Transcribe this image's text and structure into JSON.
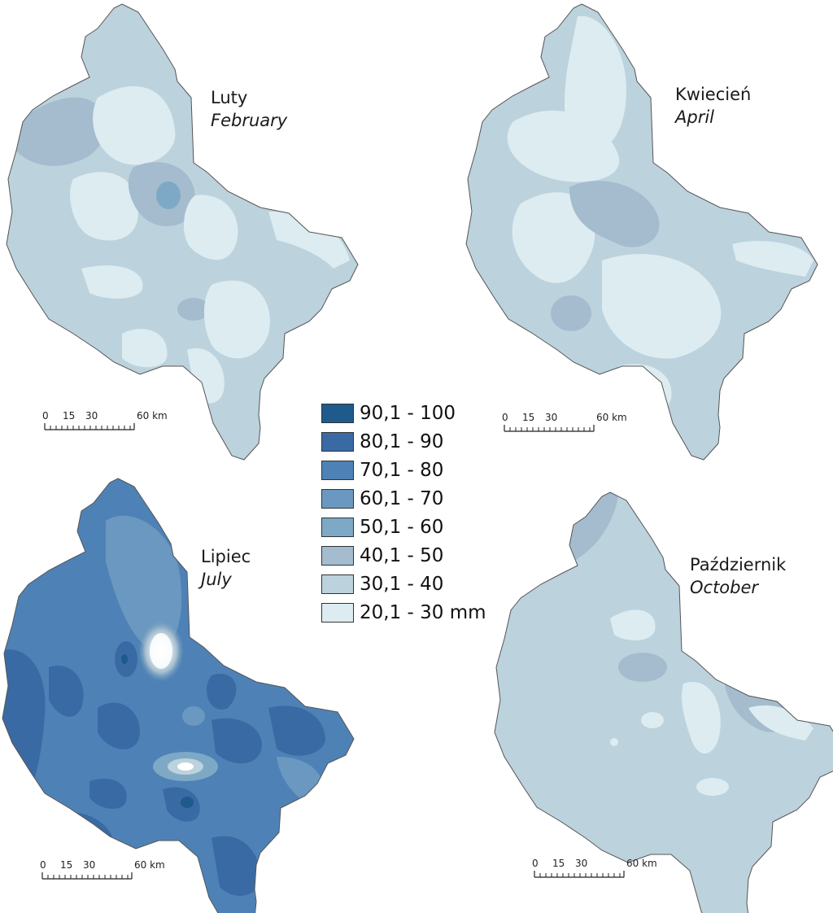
{
  "maps": [
    {
      "id": "feb",
      "title_pl": "Luty",
      "title_en": "February"
    },
    {
      "id": "apr",
      "title_pl": "Kwiecień",
      "title_en": "April"
    },
    {
      "id": "jul",
      "title_pl": "Lipiec",
      "title_en": "July"
    },
    {
      "id": "oct",
      "title_pl": "Październik",
      "title_en": "October"
    }
  ],
  "scale_bar": {
    "ticks": [
      "0",
      "15",
      "30",
      "60 km"
    ]
  },
  "legend": {
    "classes": [
      {
        "label": "90,1 - 100",
        "color": "#1f5a8c"
      },
      {
        "label": "80,1 - 90",
        "color": "#3a6aa4"
      },
      {
        "label": "70,1 - 80",
        "color": "#4e82b6"
      },
      {
        "label": "60,1 - 70",
        "color": "#6a98c0"
      },
      {
        "label": "50,1 - 60",
        "color": "#7ea9c6"
      },
      {
        "label": "40,1 - 50",
        "color": "#a4bccd"
      },
      {
        "label": "30,1 - 40",
        "color": "#bcd2dd"
      },
      {
        "label": "20,1 - 30 mm",
        "color": "#dcecf0"
      }
    ]
  }
}
